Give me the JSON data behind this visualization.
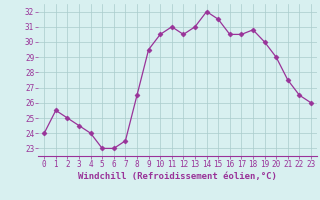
{
  "x": [
    0,
    1,
    2,
    3,
    4,
    5,
    6,
    7,
    8,
    9,
    10,
    11,
    12,
    13,
    14,
    15,
    16,
    17,
    18,
    19,
    20,
    21,
    22,
    23
  ],
  "y": [
    24.0,
    25.5,
    25.0,
    24.5,
    24.0,
    23.0,
    23.0,
    23.5,
    26.5,
    29.5,
    30.5,
    31.0,
    30.5,
    31.0,
    32.0,
    31.5,
    30.5,
    30.5,
    30.8,
    30.0,
    29.0,
    27.5,
    26.5,
    26.0
  ],
  "line_color": "#993399",
  "marker": "D",
  "marker_size": 2.5,
  "bg_color": "#d8f0f0",
  "grid_color": "#aacccc",
  "xlabel": "Windchill (Refroidissement éolien,°C)",
  "xlabel_color": "#993399",
  "ylabel_ticks": [
    23,
    24,
    25,
    26,
    27,
    28,
    29,
    30,
    31,
    32
  ],
  "ylim": [
    22.5,
    32.5
  ],
  "xlim": [
    -0.5,
    23.5
  ],
  "tick_color": "#993399",
  "label_fontsize": 6.5,
  "tick_fontsize": 5.5
}
